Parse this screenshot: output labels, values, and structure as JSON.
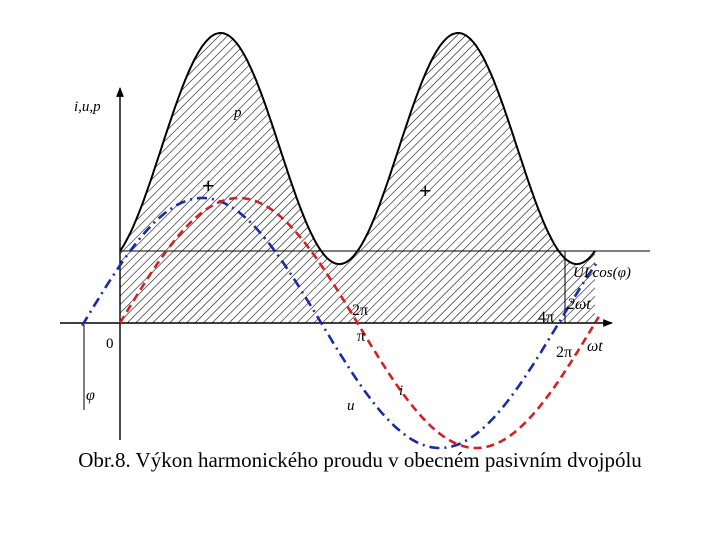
{
  "labels": {
    "y_axis": "i,u,p",
    "p_curve": "p",
    "plus_1": "+",
    "plus_2": "+",
    "avg_power": "UI cos(φ)",
    "tick_2pi_top": "2π",
    "tick_4pi": "4π",
    "axis_2wt": "2ωt",
    "origin": "0",
    "tick_pi": "π",
    "tick_2pi_bottom": "2π",
    "axis_wt": "ωt",
    "phi": "φ",
    "u_curve": "u",
    "i_curve": "i"
  },
  "caption": "Obr.8. Výkon harmonického proudu v obecném pasivním dvojpólu",
  "colors": {
    "voltage": "#1a2aa8",
    "current": "#d42020",
    "power": "#000000"
  }
}
